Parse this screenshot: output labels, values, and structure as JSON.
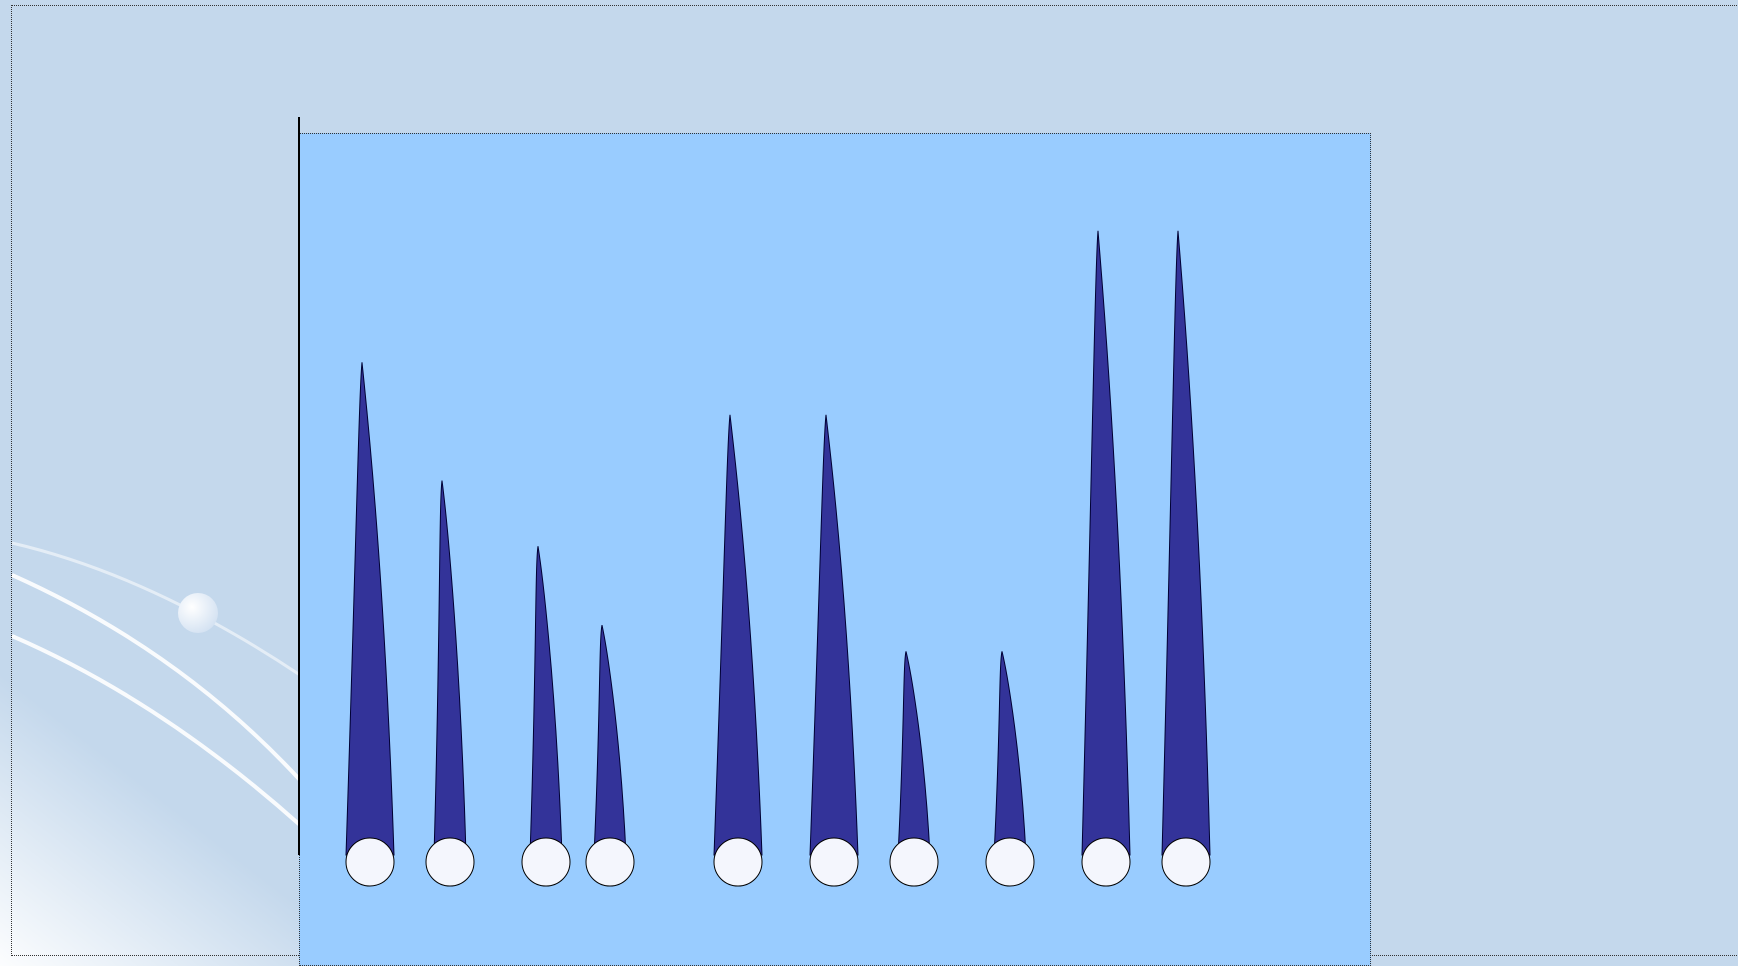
{
  "chart_data": {
    "type": "bar",
    "mark_shape": "spike",
    "title": "",
    "xlabel": "",
    "ylabel": "",
    "ylim": [
      0,
      10
    ],
    "grid": false,
    "legend": "none",
    "categories": [
      "",
      "",
      "",
      "",
      "",
      "",
      "",
      "",
      "",
      ""
    ],
    "values": [
      7.5,
      5.7,
      4.7,
      3.5,
      6.7,
      6.7,
      3.1,
      3.1,
      9.5,
      9.5
    ],
    "colors": {
      "bar": "#333399",
      "bar_outline": "#000033",
      "base_circle": "#f4f6fd",
      "plot_background": "#99ccff",
      "slide_background": "#c4d8ec"
    }
  }
}
